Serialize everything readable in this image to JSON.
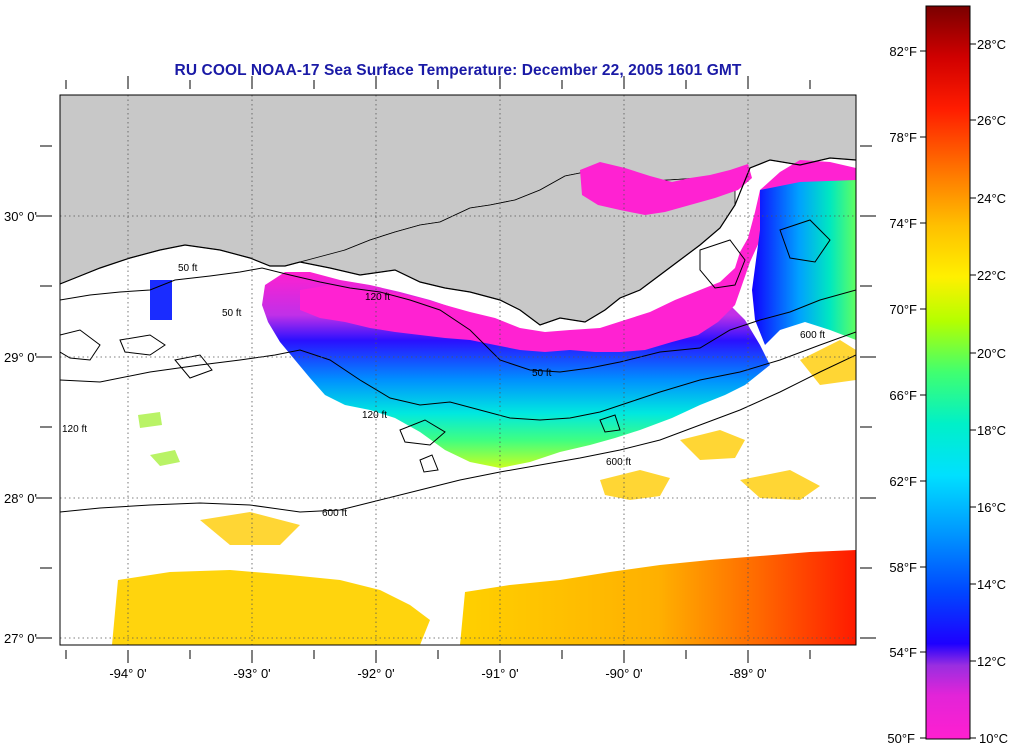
{
  "title": "RU COOL  NOAA-17  Sea Surface Temperature:  December 22, 2005 1601 GMT",
  "map": {
    "longitude_labels": [
      "-94° 0'",
      "-93° 0'",
      "-92° 0'",
      "-91° 0'",
      "-90° 0'",
      "-89° 0'"
    ],
    "latitude_labels": [
      "30° 0'",
      "29° 0'",
      "28° 0'",
      "27° 0'"
    ],
    "contour_labels": [
      "50 ft",
      "120 ft",
      "600 ft"
    ],
    "colors": {
      "land": "#c8c8c8",
      "ocean_no_data": "#ffffff",
      "grid": "#555555",
      "coast": "#000000"
    }
  },
  "colorbar": {
    "fahrenheit_labels": [
      "82°F",
      "78°F",
      "74°F",
      "70°F",
      "66°F",
      "62°F",
      "58°F",
      "54°F",
      "50°F"
    ],
    "celsius_labels": [
      "28°C",
      "26°C",
      "24°C",
      "22°C",
      "20°C",
      "18°C",
      "16°C",
      "14°C",
      "12°C",
      "10°C"
    ],
    "range_celsius": [
      10,
      29.5
    ],
    "gradient": [
      "#ff1fd0",
      "#9a2ee0",
      "#1e00ff",
      "#0066ff",
      "#00c8ff",
      "#00f0d0",
      "#30ff60",
      "#c8ff00",
      "#fff000",
      "#ffb000",
      "#ff6600",
      "#ff0000",
      "#a80000",
      "#7a0000"
    ]
  }
}
